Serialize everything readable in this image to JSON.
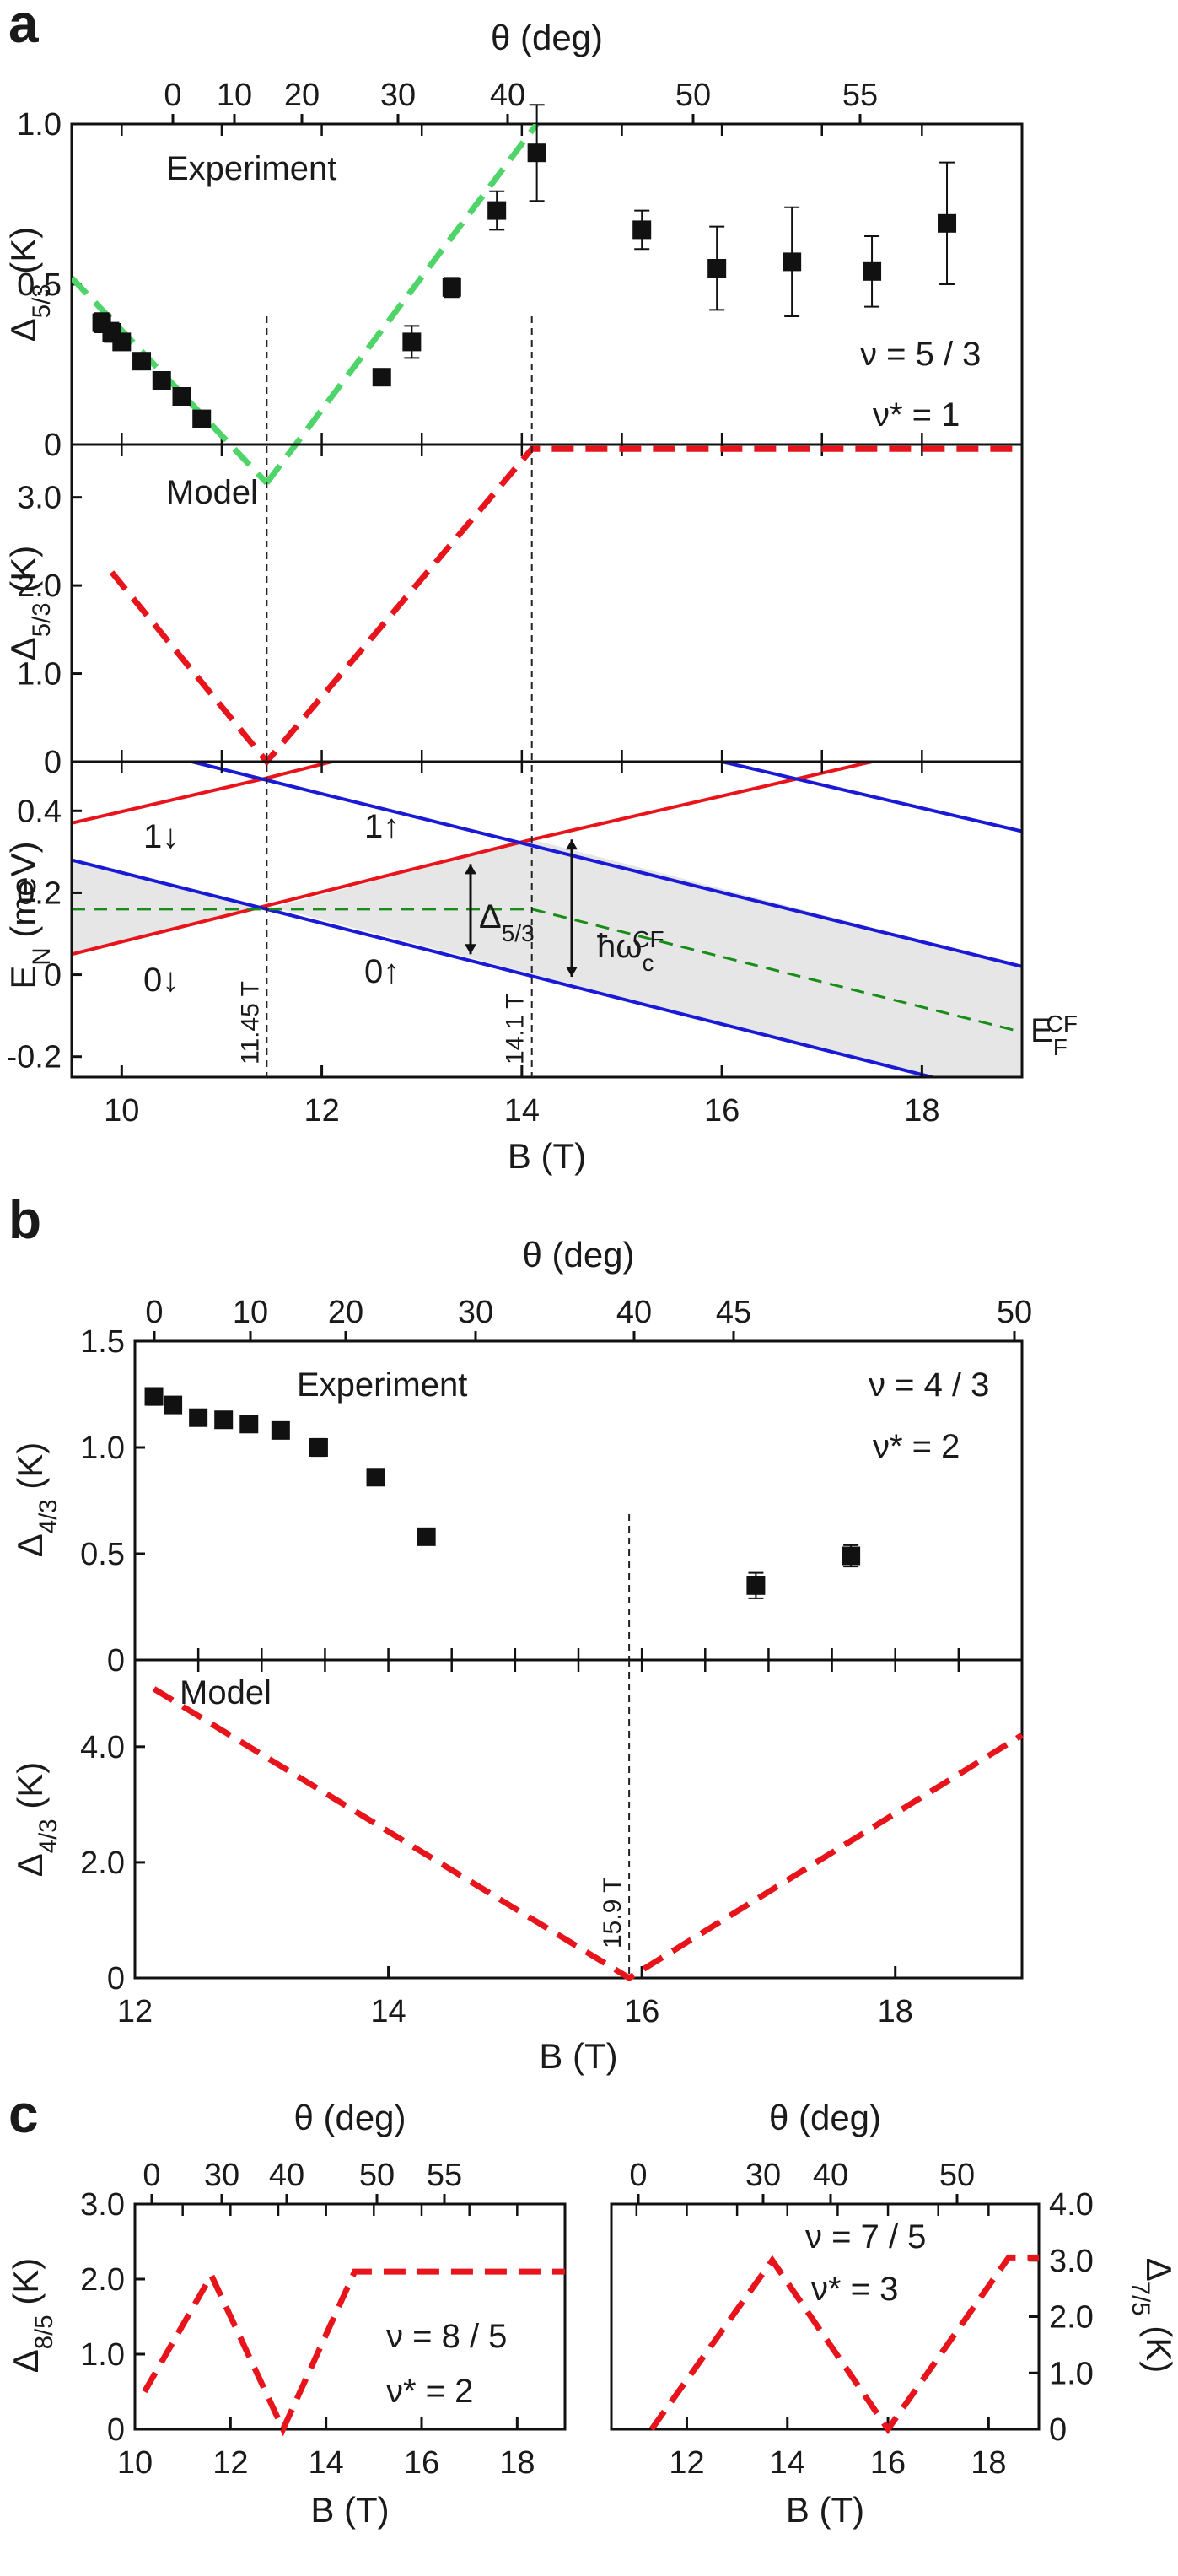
{
  "colors": {
    "red": "#e8141c",
    "blue": "#1a1ad6",
    "green_dash": "#4fd46a",
    "green_fermi": "#1a8c1a",
    "shade": "#e6e6e6",
    "black": "#111111"
  },
  "chart_data": [
    {
      "id": "a-experiment",
      "panel": "a",
      "type": "scatter",
      "top_axis": {
        "label": "θ (deg)",
        "ticks": [
          0,
          10,
          20,
          30,
          40,
          50,
          55
        ]
      },
      "xlim": [
        9.5,
        19
      ],
      "ylim": [
        0,
        1.0
      ],
      "ylabel_base": "Δ",
      "ylabel_sub": "5/3",
      "ylabel_unit": " (K)",
      "yticks": [
        "0",
        "0.5",
        "1.0"
      ],
      "text": "Experiment",
      "nu": "ν = 5 / 3",
      "nustar": "ν* = 1",
      "points": [
        {
          "x": 9.8,
          "y": 0.38,
          "err": 0.03
        },
        {
          "x": 9.9,
          "y": 0.35,
          "err": 0.03
        },
        {
          "x": 10.0,
          "y": 0.32,
          "err": 0.02
        },
        {
          "x": 10.2,
          "y": 0.26,
          "err": 0.02
        },
        {
          "x": 10.4,
          "y": 0.2,
          "err": 0.02
        },
        {
          "x": 10.6,
          "y": 0.15,
          "err": 0.02
        },
        {
          "x": 10.8,
          "y": 0.08,
          "err": 0.01
        },
        {
          "x": 12.6,
          "y": 0.21,
          "err": 0.02
        },
        {
          "x": 12.9,
          "y": 0.32,
          "err": 0.05
        },
        {
          "x": 13.3,
          "y": 0.49,
          "err": 0.03
        },
        {
          "x": 13.75,
          "y": 0.73,
          "err": 0.06
        },
        {
          "x": 14.15,
          "y": 0.91,
          "err": 0.15
        },
        {
          "x": 15.2,
          "y": 0.67,
          "err": 0.06
        },
        {
          "x": 15.95,
          "y": 0.55,
          "err": 0.13
        },
        {
          "x": 16.7,
          "y": 0.57,
          "err": 0.17
        },
        {
          "x": 17.5,
          "y": 0.54,
          "err": 0.11
        },
        {
          "x": 18.25,
          "y": 0.69,
          "err": 0.19
        }
      ],
      "fit_lines": [
        {
          "x": [
            9.5,
            11.45
          ],
          "y": [
            0.52,
            -0.12
          ]
        },
        {
          "x": [
            11.45,
            14.15
          ],
          "y": [
            -0.12,
            1.0
          ]
        }
      ]
    },
    {
      "id": "a-model",
      "panel": "a",
      "type": "line",
      "xlim": [
        9.5,
        19
      ],
      "ylim": [
        0,
        3.6
      ],
      "ylabel_base": "Δ",
      "ylabel_sub": "5/3",
      "ylabel_unit": " (K)",
      "yticks": [
        "0",
        "1.0",
        "2.0",
        "3.0"
      ],
      "text": "Model",
      "series": [
        {
          "x": [
            9.9,
            11.45,
            14.1,
            14.1,
            19
          ],
          "y": [
            2.15,
            0,
            3.55,
            3.55,
            3.55
          ]
        }
      ]
    },
    {
      "id": "a-levels",
      "panel": "a",
      "type": "line",
      "xlim": [
        9.5,
        19
      ],
      "ylim": [
        -0.25,
        0.52
      ],
      "xlabel": "B (T)",
      "xticks": [
        "10",
        "12",
        "14",
        "16",
        "18"
      ],
      "ylabel_base": "E",
      "ylabel_sub": "N",
      "ylabel_unit": " (meV)",
      "yticks": [
        "-0.2",
        "0",
        "0.2",
        "0.4"
      ],
      "levels": [
        {
          "label": "0↓",
          "color": "red",
          "x": [
            9.5,
            14.1
          ],
          "y": [
            0.05,
            0.33
          ]
        },
        {
          "label": "",
          "color": "red",
          "x": [
            14.1,
            17.5
          ],
          "y": [
            0.33,
            0.52
          ]
        },
        {
          "label": "1↓",
          "color": "red",
          "x": [
            9.5,
            11.45
          ],
          "y": [
            0.37,
            0.48
          ]
        },
        {
          "label": "",
          "color": "red",
          "x": [
            11.45,
            12.1
          ],
          "y": [
            0.48,
            0.52
          ]
        },
        {
          "label": "1↑",
          "color": "blue",
          "x": [
            10.7,
            19
          ],
          "y": [
            0.52,
            0.02
          ]
        },
        {
          "label": "0↑",
          "color": "blue",
          "x": [
            9.5,
            18.1
          ],
          "y": [
            0.28,
            -0.25
          ]
        },
        {
          "label": "",
          "color": "blue",
          "x": [
            16.0,
            19
          ],
          "y": [
            0.52,
            0.35
          ]
        }
      ],
      "fermi": {
        "label_base": "E",
        "label_sub": "F",
        "label_sup": "CF",
        "x": [
          9.5,
          11.45,
          14.1,
          19
        ],
        "y": [
          0.16,
          0.16,
          0.16,
          -0.14
        ]
      },
      "gap_label_base": "Δ",
      "gap_label_sub": "5/3",
      "cyclotron_label_base": "ħω",
      "cyclotron_label_sub": "c",
      "cyclotron_label_sup": "CF",
      "vlines": [
        {
          "x": 11.45,
          "label": "11.45 T"
        },
        {
          "x": 14.1,
          "label": "14.1 T"
        }
      ]
    },
    {
      "id": "b-experiment",
      "panel": "b",
      "type": "scatter",
      "top_axis": {
        "label": "θ (deg)",
        "ticks": [
          0,
          10,
          20,
          30,
          40,
          45,
          50
        ]
      },
      "xlim": [
        12,
        19
      ],
      "ylim": [
        0,
        1.5
      ],
      "ylabel_base": "Δ",
      "ylabel_sub": "4/3",
      "ylabel_unit": " (K)",
      "yticks": [
        "0",
        "0.5",
        "1.0",
        "1.5"
      ],
      "text": "Experiment",
      "nu": "ν = 4 / 3",
      "nustar": "ν* = 2",
      "points": [
        {
          "x": 12.15,
          "y": 1.24,
          "err": 0.04
        },
        {
          "x": 12.3,
          "y": 1.2,
          "err": 0.02
        },
        {
          "x": 12.5,
          "y": 1.14,
          "err": 0.02
        },
        {
          "x": 12.7,
          "y": 1.13,
          "err": 0.02
        },
        {
          "x": 12.9,
          "y": 1.11,
          "err": 0.02
        },
        {
          "x": 13.15,
          "y": 1.08,
          "err": 0.02
        },
        {
          "x": 13.45,
          "y": 1.0,
          "err": 0.04
        },
        {
          "x": 13.9,
          "y": 0.86,
          "err": 0.02
        },
        {
          "x": 14.3,
          "y": 0.58,
          "err": 0.02
        },
        {
          "x": 16.9,
          "y": 0.35,
          "err": 0.06
        },
        {
          "x": 17.65,
          "y": 0.49,
          "err": 0.05
        }
      ],
      "vline": {
        "x": 15.9
      }
    },
    {
      "id": "b-model",
      "panel": "b",
      "type": "line",
      "xlim": [
        12,
        19
      ],
      "ylim": [
        0,
        5.5
      ],
      "xlabel": "B (T)",
      "xticks": [
        "12",
        "14",
        "16",
        "18"
      ],
      "ylabel_base": "Δ",
      "ylabel_sub": "4/3",
      "ylabel_unit": " (K)",
      "yticks": [
        "0",
        "2.0",
        "4.0"
      ],
      "text": "Model",
      "series": [
        {
          "x": [
            12.15,
            15.9,
            19
          ],
          "y": [
            5.0,
            0,
            4.2
          ]
        }
      ],
      "vline": {
        "x": 15.9,
        "label": "15.9 T"
      }
    },
    {
      "id": "c-left",
      "panel": "c",
      "type": "line",
      "top_axis": {
        "label": "θ (deg)",
        "ticks": [
          0,
          30,
          40,
          50,
          55
        ]
      },
      "xlim": [
        10,
        19
      ],
      "ylim": [
        0,
        3.0
      ],
      "xlabel": "B (T)",
      "xticks": [
        "10",
        "12",
        "14",
        "16",
        "18"
      ],
      "ylabel_base": "Δ",
      "ylabel_sub": "8/5",
      "ylabel_unit": " (K)",
      "yticks": [
        "0",
        "1.0",
        "2.0",
        "3.0"
      ],
      "nu": "ν = 8 / 5",
      "nustar": "ν* = 2",
      "series": [
        {
          "x": [
            10.2,
            11.6,
            13.1,
            14.6,
            19
          ],
          "y": [
            0.5,
            2.05,
            0,
            2.1,
            2.1
          ]
        }
      ]
    },
    {
      "id": "c-right",
      "panel": "c",
      "type": "line",
      "top_axis": {
        "label": "θ (deg)",
        "ticks": [
          0,
          30,
          40,
          50
        ]
      },
      "xlim": [
        10.5,
        19
      ],
      "ylim": [
        0,
        4.0
      ],
      "xlabel": "B (T)",
      "xticks": [
        "12",
        "14",
        "16",
        "18"
      ],
      "ylabel_base": "Δ",
      "ylabel_sub": "7/5",
      "ylabel_unit": " (K)",
      "yticks": [
        "0",
        "1.0",
        "2.0",
        "3.0",
        "4.0"
      ],
      "nu": "ν = 7 / 5",
      "nustar": "ν* = 3",
      "series": [
        {
          "x": [
            11.3,
            13.7,
            16.0,
            18.4,
            19
          ],
          "y": [
            0,
            3.0,
            0,
            3.05,
            3.05
          ]
        }
      ]
    }
  ],
  "panel_letters": [
    "a",
    "b",
    "c"
  ]
}
